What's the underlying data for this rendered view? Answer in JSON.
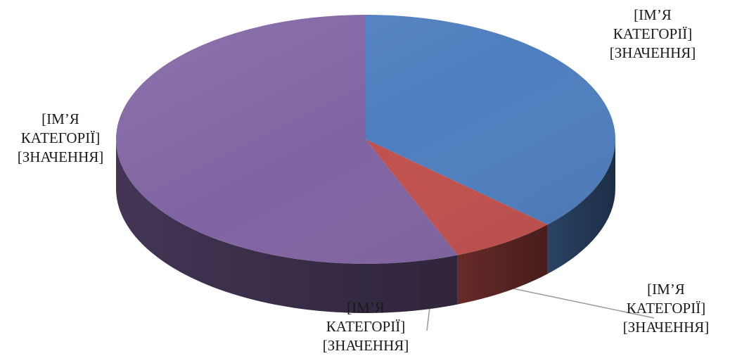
{
  "chart_data": {
    "type": "pie",
    "style": "3d",
    "start_angle_deg": -90,
    "direction": "clockwise",
    "categories": [
      "[ІМ’Я КАТЕГОРІЇ]",
      "[ІМ’Я КАТЕГОРІЇ]",
      "[ІМ’Я КАТЕГОРІЇ]"
    ],
    "values": [
      37,
      7,
      56
    ],
    "colors": [
      "#4E7EBF",
      "#C0504D",
      "#8064A2"
    ],
    "data_labels": [
      {
        "line1": "[ІМ’Я",
        "line2": "КАТЕГОРІЇ]",
        "line3": "[ЗНАЧЕННЯ]"
      },
      {
        "line1": "[ІМ’Я",
        "line2": "КАТЕГОРІЇ]",
        "line3": "[ЗНАЧЕННЯ]"
      },
      {
        "line1": "[ІМ’Я",
        "line2": "КАТЕГОРІЇ]",
        "line3": "[ЗНАЧЕННЯ]"
      }
    ],
    "legend": "none",
    "title": ""
  }
}
